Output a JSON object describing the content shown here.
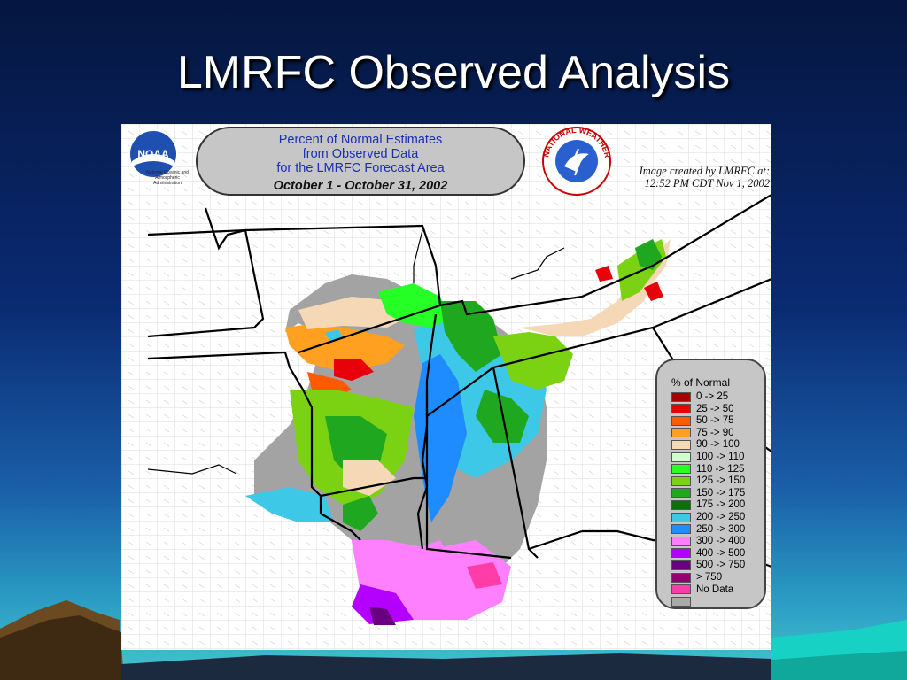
{
  "slide": {
    "title": "LMRFC Observed Analysis"
  },
  "map": {
    "title_lines": [
      "Percent of Normal Estimates",
      "from Observed Data",
      "for the LMRFC Forecast Area"
    ],
    "date_range": "October 1 - October 31, 2002",
    "created_by": "Image created by LMRFC at:",
    "created_time": "12:52 PM CDT Nov 1, 2002",
    "noaa_logo_text": "NOAA",
    "noaa_logo_sub": "National Oceanic and Atmospheric Administration",
    "nws_logo_text": "NATIONAL WEATHER SERVICE",
    "legend": {
      "heading": "% of Normal",
      "items": [
        {
          "label": "0 -> 25",
          "color": "#a80000"
        },
        {
          "label": "25 -> 50",
          "color": "#e8000b"
        },
        {
          "label": "50 -> 75",
          "color": "#ff5a00"
        },
        {
          "label": "75 -> 90",
          "color": "#ffa020"
        },
        {
          "label": "90 -> 100",
          "color": "#f5d8b6"
        },
        {
          "label": "100 -> 110",
          "color": "#d2ffd2"
        },
        {
          "label": "110 -> 125",
          "color": "#25ff25"
        },
        {
          "label": "125 -> 150",
          "color": "#7ad212"
        },
        {
          "label": "150 -> 175",
          "color": "#1fa81f"
        },
        {
          "label": "175 -> 200",
          "color": "#0f6e0f"
        },
        {
          "label": "200 -> 250",
          "color": "#3cc8e6"
        },
        {
          "label": "250 -> 300",
          "color": "#1e8cff"
        },
        {
          "label": "300 -> 400",
          "color": "#ff80ff"
        },
        {
          "label": "400 -> 500",
          "color": "#b400ff"
        },
        {
          "label": "500 -> 750",
          "color": "#6a0080"
        },
        {
          "label": "> 750",
          "color": "#96006e"
        },
        {
          "label": "No Data",
          "color": "#ff3ca8"
        },
        {
          "label": "",
          "color": "#aaaaaa"
        }
      ]
    }
  }
}
